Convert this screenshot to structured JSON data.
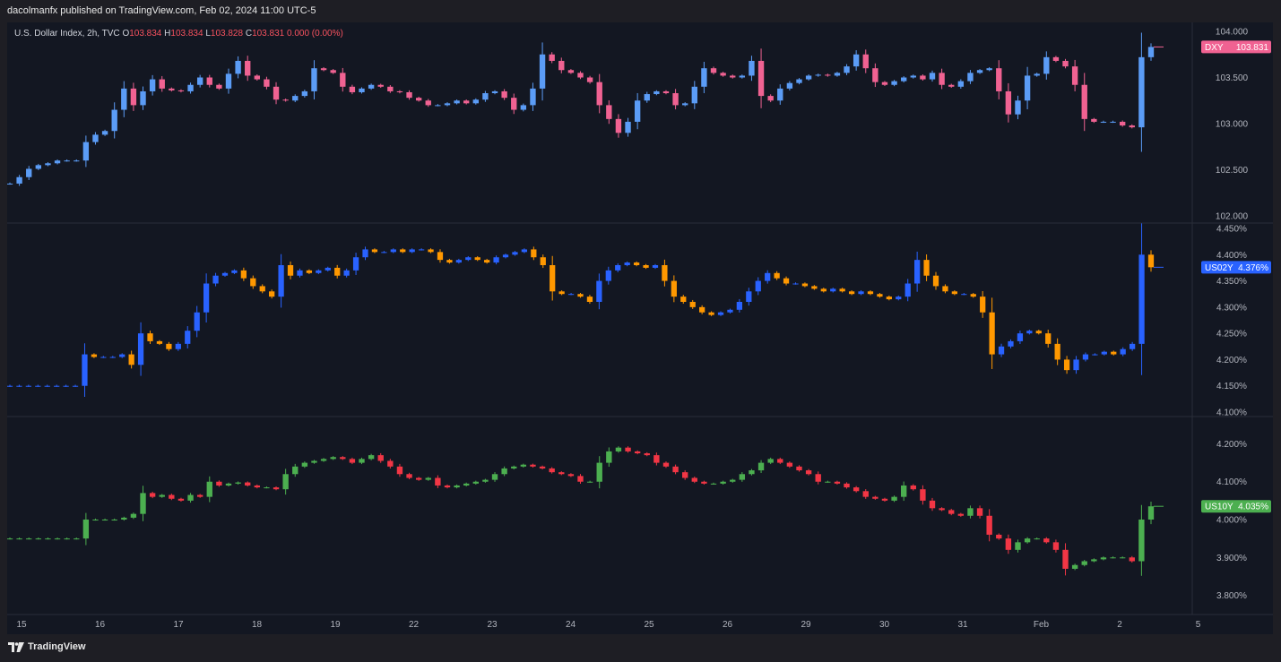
{
  "header": {
    "published_by": "dacolmanfx published on TradingView.com, Feb 02, 2024 11:00 UTC-5"
  },
  "legend": {
    "symbol": "U.S. Dollar Index, 2h, TVC",
    "o_label": "O",
    "o_value": "103.834",
    "h_label": "H",
    "h_value": "103.834",
    "l_label": "L",
    "l_value": "103.828",
    "c_label": "C",
    "c_value": "103.831",
    "change": "0.000 (0.00%)"
  },
  "footer": {
    "brand": "TradingView",
    "logo_icon": "tradingview-logo-icon"
  },
  "chart_data": [
    {
      "type": "candlestick",
      "symbol": "DXY",
      "last_value": "103.831",
      "badge_color": "#f06292",
      "up_color": "#5b9cf6",
      "down_color": "#f06292",
      "ylim": [
        102.0,
        104.0
      ],
      "y_ticks": [
        "104.000",
        "103.500",
        "103.000",
        "102.500",
        "102.000"
      ],
      "closes": [
        102.35,
        102.42,
        102.51,
        102.55,
        102.57,
        102.6,
        102.6,
        102.6,
        102.8,
        102.88,
        102.92,
        103.15,
        103.38,
        103.2,
        103.35,
        103.48,
        103.38,
        103.36,
        103.35,
        103.42,
        103.5,
        103.42,
        103.38,
        103.54,
        103.68,
        103.52,
        103.48,
        103.4,
        103.26,
        103.25,
        103.3,
        103.35,
        103.6,
        103.58,
        103.55,
        103.4,
        103.34,
        103.38,
        103.42,
        103.4,
        103.35,
        103.34,
        103.28,
        103.25,
        103.2,
        103.2,
        103.22,
        103.25,
        103.22,
        103.26,
        103.33,
        103.35,
        103.28,
        103.15,
        103.2,
        103.38,
        103.75,
        103.68,
        103.58,
        103.55,
        103.5,
        103.45,
        103.2,
        103.05,
        102.9,
        103.02,
        103.25,
        103.32,
        103.35,
        103.33,
        103.2,
        103.22,
        103.4,
        103.6,
        103.55,
        103.52,
        103.5,
        103.52,
        103.68,
        103.3,
        103.25,
        103.38,
        103.44,
        103.48,
        103.52,
        103.53,
        103.52,
        103.55,
        103.62,
        103.75,
        103.6,
        103.45,
        103.42,
        103.46,
        103.5,
        103.52,
        103.48,
        103.55,
        103.42,
        103.4,
        103.46,
        103.55,
        103.58,
        103.6,
        103.35,
        103.1,
        103.25,
        103.52,
        103.54,
        103.72,
        103.68,
        103.62,
        103.42,
        103.05,
        103.02,
        103.02,
        103.02,
        102.98,
        102.96,
        103.72,
        103.831
      ],
      "x_ticks": [
        "15",
        "16",
        "17",
        "18",
        "19",
        "22",
        "23",
        "24",
        "25",
        "26",
        "29",
        "30",
        "31",
        "Feb",
        "2",
        "5"
      ]
    },
    {
      "type": "candlestick",
      "symbol": "US02Y",
      "last_value": "4.376%",
      "badge_color": "#2962ff",
      "up_color": "#2962ff",
      "down_color": "#ff9800",
      "ylim": [
        4.1,
        4.45
      ],
      "y_ticks": [
        "4.450%",
        "4.400%",
        "4.350%",
        "4.300%",
        "4.250%",
        "4.200%",
        "4.150%",
        "4.100%"
      ],
      "closes": [
        4.15,
        4.15,
        4.15,
        4.15,
        4.15,
        4.15,
        4.15,
        4.15,
        4.21,
        4.205,
        4.205,
        4.205,
        4.21,
        4.19,
        4.25,
        4.235,
        4.23,
        4.22,
        4.23,
        4.255,
        4.29,
        4.345,
        4.36,
        4.365,
        4.37,
        4.355,
        4.34,
        4.33,
        4.32,
        4.38,
        4.36,
        4.37,
        4.365,
        4.37,
        4.375,
        4.36,
        4.37,
        4.395,
        4.41,
        4.405,
        4.405,
        4.41,
        4.405,
        4.41,
        4.41,
        4.405,
        4.39,
        4.385,
        4.39,
        4.395,
        4.39,
        4.385,
        4.395,
        4.4,
        4.405,
        4.41,
        4.395,
        4.38,
        4.33,
        4.325,
        4.325,
        4.32,
        4.31,
        4.35,
        4.37,
        4.38,
        4.385,
        4.38,
        4.375,
        4.38,
        4.35,
        4.32,
        4.31,
        4.3,
        4.29,
        4.285,
        4.29,
        4.295,
        4.31,
        4.33,
        4.35,
        4.365,
        4.355,
        4.345,
        4.345,
        4.34,
        4.335,
        4.33,
        4.335,
        4.33,
        4.325,
        4.33,
        4.325,
        4.32,
        4.315,
        4.32,
        4.345,
        4.39,
        4.36,
        4.34,
        4.33,
        4.325,
        4.325,
        4.32,
        4.29,
        4.21,
        4.225,
        4.235,
        4.25,
        4.255,
        4.25,
        4.23,
        4.2,
        4.18,
        4.2,
        4.21,
        4.21,
        4.215,
        4.21,
        4.22,
        4.23,
        4.4,
        4.376
      ],
      "x_ticks": [
        "15",
        "16",
        "17",
        "18",
        "19",
        "22",
        "23",
        "24",
        "25",
        "26",
        "29",
        "30",
        "31",
        "Feb",
        "2",
        "5"
      ]
    },
    {
      "type": "candlestick",
      "symbol": "US10Y",
      "last_value": "4.035%",
      "badge_color": "#4caf50",
      "up_color": "#4caf50",
      "down_color": "#f23645",
      "ylim": [
        3.78,
        4.22
      ],
      "y_ticks": [
        "4.200%",
        "4.100%",
        "4.000%",
        "3.900%",
        "3.800%"
      ],
      "closes": [
        3.95,
        3.95,
        3.95,
        3.95,
        3.95,
        3.95,
        3.95,
        3.95,
        4.0,
        4.0,
        4.0,
        4.0,
        4.005,
        4.015,
        4.07,
        4.06,
        4.065,
        4.055,
        4.05,
        4.065,
        4.06,
        4.1,
        4.09,
        4.095,
        4.098,
        4.09,
        4.085,
        4.085,
        4.08,
        4.12,
        4.14,
        4.15,
        4.155,
        4.16,
        4.165,
        4.16,
        4.15,
        4.16,
        4.17,
        4.155,
        4.14,
        4.12,
        4.11,
        4.105,
        4.11,
        4.09,
        4.085,
        4.09,
        4.095,
        4.1,
        4.105,
        4.12,
        4.135,
        4.14,
        4.145,
        4.14,
        4.135,
        4.125,
        4.12,
        4.115,
        4.1,
        4.1,
        4.15,
        4.18,
        4.19,
        4.18,
        4.175,
        4.17,
        4.15,
        4.14,
        4.125,
        4.11,
        4.1,
        4.095,
        4.095,
        4.1,
        4.105,
        4.12,
        4.13,
        4.15,
        4.16,
        4.15,
        4.14,
        4.13,
        4.12,
        4.1,
        4.1,
        4.095,
        4.085,
        4.075,
        4.06,
        4.055,
        4.05,
        4.06,
        4.09,
        4.08,
        4.05,
        4.03,
        4.025,
        4.015,
        4.01,
        4.03,
        4.01,
        3.96,
        3.95,
        3.92,
        3.94,
        3.95,
        3.95,
        3.94,
        3.92,
        3.87,
        3.88,
        3.89,
        3.895,
        3.9,
        3.9,
        3.9,
        3.89,
        4.0,
        4.035
      ],
      "x_ticks": [
        "15",
        "16",
        "17",
        "18",
        "19",
        "22",
        "23",
        "24",
        "25",
        "26",
        "29",
        "30",
        "31",
        "Feb",
        "2",
        "5"
      ]
    }
  ]
}
